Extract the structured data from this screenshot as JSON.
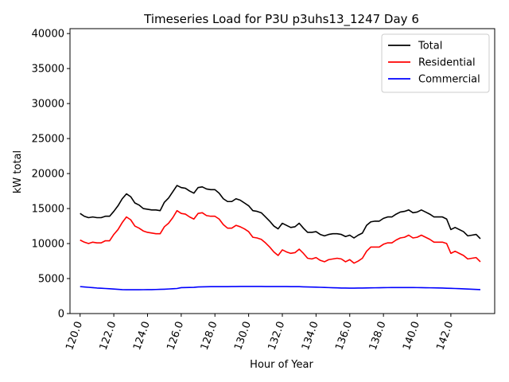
{
  "chart_data": {
    "type": "line",
    "title": "Timeseries Load for P3U p3uhs13_1247  Day 6",
    "xlabel": "Hour of Year",
    "ylabel": "kW total",
    "xlim": [
      119.4,
      144.6
    ],
    "ylim": [
      0,
      40700
    ],
    "xticks": [
      120,
      122,
      124,
      126,
      128,
      130,
      132,
      134,
      136,
      138,
      140,
      142
    ],
    "xtick_labels": [
      "120.0",
      "122.0",
      "124.0",
      "126.0",
      "128.0",
      "130.0",
      "132.0",
      "134.0",
      "136.0",
      "138.0",
      "140.0",
      "142.0"
    ],
    "yticks": [
      0,
      5000,
      10000,
      15000,
      20000,
      25000,
      30000,
      35000,
      40000
    ],
    "ytick_labels": [
      "0",
      "5000",
      "10000",
      "15000",
      "20000",
      "25000",
      "30000",
      "35000",
      "40000"
    ],
    "legend_position": "top-right",
    "x": [
      120.0,
      120.25,
      120.5,
      120.75,
      121.0,
      121.25,
      121.5,
      121.75,
      122.0,
      122.25,
      122.5,
      122.75,
      123.0,
      123.25,
      123.5,
      123.75,
      124.0,
      124.25,
      124.5,
      124.75,
      125.0,
      125.25,
      125.5,
      125.75,
      126.0,
      126.25,
      126.5,
      126.75,
      127.0,
      127.25,
      127.5,
      127.75,
      128.0,
      128.25,
      128.5,
      128.75,
      129.0,
      129.25,
      129.5,
      129.75,
      130.0,
      130.25,
      130.5,
      130.75,
      131.0,
      131.25,
      131.5,
      131.75,
      132.0,
      132.25,
      132.5,
      132.75,
      133.0,
      133.25,
      133.5,
      133.75,
      134.0,
      134.25,
      134.5,
      134.75,
      135.0,
      135.25,
      135.5,
      135.75,
      136.0,
      136.25,
      136.5,
      136.75,
      137.0,
      137.25,
      137.5,
      137.75,
      138.0,
      138.25,
      138.5,
      138.75,
      139.0,
      139.25,
      139.5,
      139.75,
      140.0,
      140.25,
      140.5,
      140.75,
      141.0,
      141.25,
      141.5,
      141.75,
      142.0,
      142.25,
      142.5,
      142.75,
      143.0,
      143.25,
      143.5,
      143.75
    ],
    "series": [
      {
        "name": "Total",
        "color": "#000000",
        "values": [
          14300,
          13900,
          13700,
          13800,
          13700,
          13700,
          13900,
          13900,
          14600,
          15400,
          16400,
          17100,
          16700,
          15800,
          15500,
          15000,
          14900,
          14800,
          14800,
          14700,
          15900,
          16500,
          17400,
          18300,
          18000,
          17900,
          17500,
          17200,
          18000,
          18100,
          17800,
          17700,
          17700,
          17200,
          16400,
          16000,
          16000,
          16400,
          16200,
          15800,
          15400,
          14700,
          14600,
          14400,
          13800,
          13200,
          12500,
          12100,
          12900,
          12600,
          12300,
          12400,
          12900,
          12200,
          11600,
          11600,
          11700,
          11300,
          11100,
          11300,
          11400,
          11400,
          11300,
          11000,
          11200,
          10800,
          11200,
          11500,
          12600,
          13100,
          13200,
          13200,
          13600,
          13800,
          13800,
          14200,
          14500,
          14600,
          14800,
          14400,
          14500,
          14800,
          14500,
          14200,
          13800,
          13800,
          13800,
          13500,
          12000,
          12300,
          12000,
          11700,
          11100,
          11200,
          11300,
          10700
        ]
      },
      {
        "name": "Residential",
        "color": "#ff0000",
        "values": [
          10500,
          10200,
          10000,
          10200,
          10100,
          10100,
          10400,
          10400,
          11300,
          12000,
          13000,
          13800,
          13400,
          12500,
          12200,
          11800,
          11600,
          11500,
          11400,
          11400,
          12400,
          12900,
          13700,
          14700,
          14300,
          14200,
          13800,
          13500,
          14300,
          14400,
          14000,
          13900,
          13900,
          13500,
          12700,
          12200,
          12200,
          12600,
          12400,
          12100,
          11700,
          10900,
          10800,
          10600,
          10100,
          9500,
          8800,
          8300,
          9100,
          8800,
          8600,
          8700,
          9200,
          8600,
          7900,
          7800,
          8000,
          7600,
          7400,
          7700,
          7800,
          7900,
          7800,
          7400,
          7700,
          7200,
          7500,
          7900,
          8900,
          9500,
          9500,
          9500,
          9900,
          10100,
          10100,
          10500,
          10800,
          10900,
          11200,
          10800,
          10900,
          11200,
          10900,
          10600,
          10200,
          10200,
          10200,
          10000,
          8600,
          8900,
          8600,
          8300,
          7800,
          7900,
          8000,
          7400
        ]
      },
      {
        "name": "Commercial",
        "color": "#0000ff",
        "values": [
          3850,
          3800,
          3750,
          3700,
          3650,
          3620,
          3580,
          3540,
          3500,
          3460,
          3420,
          3400,
          3400,
          3400,
          3400,
          3410,
          3420,
          3420,
          3440,
          3460,
          3480,
          3510,
          3540,
          3580,
          3700,
          3720,
          3730,
          3740,
          3800,
          3820,
          3830,
          3840,
          3840,
          3840,
          3840,
          3850,
          3860,
          3860,
          3870,
          3870,
          3870,
          3870,
          3870,
          3870,
          3860,
          3860,
          3860,
          3860,
          3860,
          3860,
          3850,
          3850,
          3840,
          3820,
          3800,
          3790,
          3770,
          3750,
          3730,
          3710,
          3690,
          3670,
          3650,
          3640,
          3630,
          3630,
          3640,
          3650,
          3660,
          3670,
          3680,
          3690,
          3700,
          3710,
          3720,
          3720,
          3720,
          3720,
          3720,
          3720,
          3710,
          3700,
          3690,
          3680,
          3670,
          3660,
          3640,
          3620,
          3600,
          3580,
          3560,
          3530,
          3500,
          3470,
          3450,
          3420
        ]
      }
    ]
  }
}
